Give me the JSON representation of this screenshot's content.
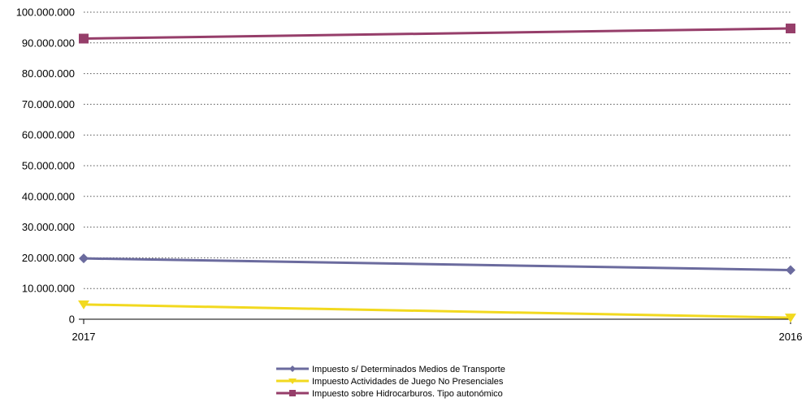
{
  "chart_data": {
    "type": "line",
    "title": "",
    "xlabel": "",
    "ylabel": "",
    "x": [
      "2017",
      "2016"
    ],
    "ylim": [
      0,
      100000000
    ],
    "yticks": [
      0,
      10000000,
      20000000,
      30000000,
      40000000,
      50000000,
      60000000,
      70000000,
      80000000,
      90000000,
      100000000
    ],
    "ytick_labels": [
      "0",
      "10.000.000",
      "20.000.000",
      "30.000.000",
      "40.000.000",
      "50.000.000",
      "60.000.000",
      "70.000.000",
      "80.000.000",
      "90.000.000",
      "100.000.000"
    ],
    "grid": "horizontal dotted",
    "legend_position": "bottom",
    "series": [
      {
        "name": "Impuesto s/ Determinados Medios de Transporte",
        "values": [
          19800000,
          16000000
        ],
        "color": "#6b6b9e",
        "marker": "diamond"
      },
      {
        "name": "Impuesto Actividades de Juego No Presenciales",
        "values": [
          4800000,
          500000
        ],
        "color": "#f2d91f",
        "marker": "triangle-down"
      },
      {
        "name": "Impuesto sobre Hidrocarburos. Tipo autonómico",
        "values": [
          91400000,
          94700000
        ],
        "color": "#963e6a",
        "marker": "square"
      }
    ]
  }
}
